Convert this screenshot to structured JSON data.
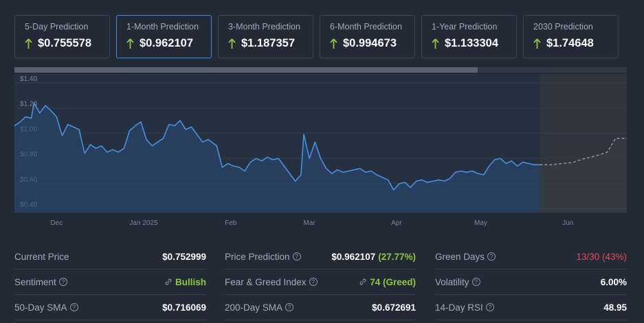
{
  "predictions": [
    {
      "label": "5-Day Prediction",
      "value": "$0.755578"
    },
    {
      "label": "1-Month Prediction",
      "value": "$0.962107"
    },
    {
      "label": "3-Month Prediction",
      "value": "$1.187357"
    },
    {
      "label": "6-Month Prediction",
      "value": "$0.994673"
    },
    {
      "label": "1-Year Prediction",
      "value": "$1.133304"
    },
    {
      "label": "2030 Prediction",
      "value": "$1.74648"
    }
  ],
  "colors": {
    "accent": "#4a86d8",
    "line": "#4a90e2",
    "up": "#8fc640",
    "down": "#ea4a5a",
    "background": "#222a36"
  },
  "chart_data": {
    "type": "line",
    "ylabel": "",
    "xlabel": "",
    "yticks": [
      "$1.40",
      "$1.20",
      "$1.00",
      "$0.80",
      "$0.60",
      "$0.40"
    ],
    "ytick_values": [
      1.4,
      1.2,
      1.0,
      0.8,
      0.6,
      0.4
    ],
    "ylim": [
      0.37,
      1.47
    ],
    "xlim": [
      "2024-11-16",
      "2025-06-22"
    ],
    "xticks": [
      {
        "label": "Dec",
        "date": "2024-12-01"
      },
      {
        "label": "Jan 2025",
        "date": "2025-01-01"
      },
      {
        "label": "Feb",
        "date": "2025-02-01"
      },
      {
        "label": "Mar",
        "date": "2025-03-01"
      },
      {
        "label": "Apr",
        "date": "2025-04-01"
      },
      {
        "label": "May",
        "date": "2025-05-01"
      },
      {
        "label": "Jun",
        "date": "2025-06-01"
      }
    ],
    "grid": true,
    "series": [
      {
        "style": "solid",
        "points": [
          [
            "2024-11-16",
            1.06
          ],
          [
            "2024-11-18",
            1.09
          ],
          [
            "2024-11-20",
            1.13
          ],
          [
            "2024-11-22",
            1.12
          ],
          [
            "2024-11-23",
            1.24
          ],
          [
            "2024-11-25",
            1.16
          ],
          [
            "2024-11-27",
            1.22
          ],
          [
            "2024-11-29",
            1.18
          ],
          [
            "2024-12-01",
            1.13
          ],
          [
            "2024-12-03",
            0.98
          ],
          [
            "2024-12-05",
            1.07
          ],
          [
            "2024-12-07",
            1.05
          ],
          [
            "2024-12-09",
            1.03
          ],
          [
            "2024-12-11",
            0.84
          ],
          [
            "2024-12-13",
            0.91
          ],
          [
            "2024-12-15",
            0.88
          ],
          [
            "2024-12-17",
            0.9
          ],
          [
            "2024-12-19",
            0.85
          ],
          [
            "2024-12-21",
            0.87
          ],
          [
            "2024-12-23",
            0.85
          ],
          [
            "2024-12-25",
            0.88
          ],
          [
            "2024-12-27",
            1.02
          ],
          [
            "2024-12-29",
            1.06
          ],
          [
            "2024-12-31",
            1.09
          ],
          [
            "2025-01-02",
            0.95
          ],
          [
            "2025-01-04",
            0.9
          ],
          [
            "2025-01-06",
            0.93
          ],
          [
            "2025-01-08",
            0.96
          ],
          [
            "2025-01-10",
            1.07
          ],
          [
            "2025-01-12",
            1.06
          ],
          [
            "2025-01-14",
            1.1
          ],
          [
            "2025-01-16",
            1.03
          ],
          [
            "2025-01-18",
            1.05
          ],
          [
            "2025-01-20",
            0.99
          ],
          [
            "2025-01-22",
            0.93
          ],
          [
            "2025-01-24",
            0.95
          ],
          [
            "2025-01-27",
            0.9
          ],
          [
            "2025-01-29",
            0.73
          ],
          [
            "2025-01-31",
            0.76
          ],
          [
            "2025-02-02",
            0.74
          ],
          [
            "2025-02-04",
            0.73
          ],
          [
            "2025-02-06",
            0.7
          ],
          [
            "2025-02-08",
            0.77
          ],
          [
            "2025-02-10",
            0.8
          ],
          [
            "2025-02-12",
            0.78
          ],
          [
            "2025-02-14",
            0.81
          ],
          [
            "2025-02-16",
            0.79
          ],
          [
            "2025-02-18",
            0.8
          ],
          [
            "2025-02-20",
            0.74
          ],
          [
            "2025-02-22",
            0.68
          ],
          [
            "2025-02-24",
            0.62
          ],
          [
            "2025-02-26",
            0.67
          ],
          [
            "2025-02-27",
            0.99
          ],
          [
            "2025-03-01",
            0.8
          ],
          [
            "2025-03-03",
            0.93
          ],
          [
            "2025-03-05",
            0.8
          ],
          [
            "2025-03-07",
            0.72
          ],
          [
            "2025-03-09",
            0.68
          ],
          [
            "2025-03-11",
            0.71
          ],
          [
            "2025-03-13",
            0.69
          ],
          [
            "2025-03-15",
            0.7
          ],
          [
            "2025-03-17",
            0.71
          ],
          [
            "2025-03-19",
            0.72
          ],
          [
            "2025-03-21",
            0.69
          ],
          [
            "2025-03-23",
            0.7
          ],
          [
            "2025-03-25",
            0.67
          ],
          [
            "2025-03-27",
            0.65
          ],
          [
            "2025-03-29",
            0.63
          ],
          [
            "2025-03-31",
            0.55
          ],
          [
            "2025-04-02",
            0.6
          ],
          [
            "2025-04-04",
            0.61
          ],
          [
            "2025-04-06",
            0.57
          ],
          [
            "2025-04-08",
            0.62
          ],
          [
            "2025-04-10",
            0.63
          ],
          [
            "2025-04-12",
            0.61
          ],
          [
            "2025-04-14",
            0.62
          ],
          [
            "2025-04-16",
            0.63
          ],
          [
            "2025-04-18",
            0.62
          ],
          [
            "2025-04-20",
            0.64
          ],
          [
            "2025-04-22",
            0.69
          ],
          [
            "2025-04-24",
            0.7
          ],
          [
            "2025-04-26",
            0.69
          ],
          [
            "2025-04-28",
            0.7
          ],
          [
            "2025-04-30",
            0.68
          ],
          [
            "2025-05-02",
            0.67
          ],
          [
            "2025-05-04",
            0.74
          ],
          [
            "2025-05-06",
            0.79
          ],
          [
            "2025-05-08",
            0.8
          ],
          [
            "2025-05-10",
            0.76
          ],
          [
            "2025-05-12",
            0.78
          ],
          [
            "2025-05-14",
            0.74
          ],
          [
            "2025-05-16",
            0.77
          ],
          [
            "2025-05-18",
            0.76
          ],
          [
            "2025-05-20",
            0.75
          ],
          [
            "2025-05-22",
            0.75
          ]
        ]
      },
      {
        "style": "dashed",
        "points": [
          [
            "2025-05-22",
            0.75
          ],
          [
            "2025-05-26",
            0.75
          ],
          [
            "2025-05-30",
            0.76
          ],
          [
            "2025-06-03",
            0.77
          ],
          [
            "2025-06-07",
            0.8
          ],
          [
            "2025-06-11",
            0.82
          ],
          [
            "2025-06-15",
            0.85
          ],
          [
            "2025-06-18",
            0.96
          ],
          [
            "2025-06-22",
            0.96
          ]
        ]
      }
    ],
    "forecast_start": "2025-05-22"
  },
  "stats": [
    [
      {
        "label": "Current Price",
        "value": "$0.752999",
        "info": false
      },
      {
        "label": "Price Prediction",
        "value": "$0.962107",
        "extra": "(27.77%)",
        "info": true
      },
      {
        "label": "Green Days",
        "value": "13/30 (43%)",
        "info": true,
        "color": "red"
      }
    ],
    [
      {
        "label": "Sentiment",
        "value": "Bullish",
        "info": true,
        "color": "green",
        "link": true
      },
      {
        "label": "Fear & Greed Index",
        "value": "74 (Greed)",
        "info": true,
        "color": "green",
        "link": true
      },
      {
        "label": "Volatility",
        "value": "6.00%",
        "info": true
      }
    ],
    [
      {
        "label": "50-Day SMA",
        "value": "$0.716069",
        "info": true
      },
      {
        "label": "200-Day SMA",
        "value": "$0.672691",
        "info": true
      },
      {
        "label": "14-Day RSI",
        "value": "48.95",
        "info": true
      }
    ]
  ]
}
